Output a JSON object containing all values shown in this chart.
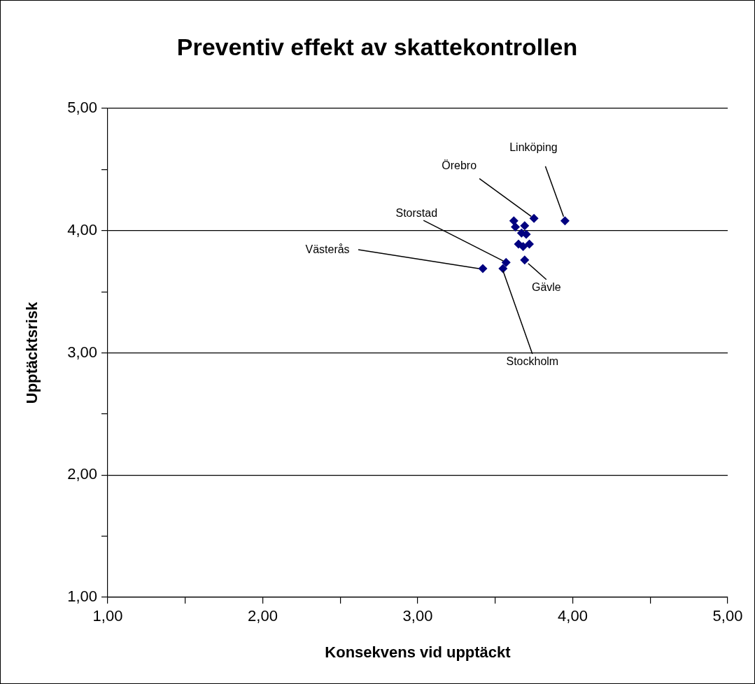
{
  "chart_data": {
    "type": "scatter",
    "title": "Preventiv effekt av skattekontrollen",
    "xlabel": "Konsekvens vid upptäckt",
    "ylabel": "Upptäcktsrisk",
    "series": [
      {
        "color": "#000080",
        "x": [
          3.75,
          3.95,
          3.62,
          3.63,
          3.69,
          3.67,
          3.7,
          3.65,
          3.68,
          3.72,
          3.69,
          3.57,
          3.55,
          3.42
        ],
        "values": [
          4.1,
          4.08,
          4.08,
          4.03,
          4.04,
          3.98,
          3.97,
          3.89,
          3.87,
          3.89,
          3.76,
          3.74,
          3.69,
          3.69
        ]
      }
    ],
    "marker": "diamond",
    "grid": "y",
    "legend": false,
    "xlim": [
      1,
      5
    ],
    "ylim": [
      1,
      5
    ],
    "xticks": [
      {
        "value": 1,
        "label": "1,00"
      },
      {
        "value": 1.5,
        "label": null
      },
      {
        "value": 2,
        "label": "2,00"
      },
      {
        "value": 2.5,
        "label": null
      },
      {
        "value": 3,
        "label": "3,00"
      },
      {
        "value": 3.5,
        "label": null
      },
      {
        "value": 4,
        "label": "4,00"
      },
      {
        "value": 4.5,
        "label": null
      },
      {
        "value": 5,
        "label": "5,00"
      }
    ],
    "yticks": [
      {
        "value": 1,
        "label": "1,00"
      },
      {
        "value": 1.5,
        "label": null
      },
      {
        "value": 2,
        "label": "2,00"
      },
      {
        "value": 2.5,
        "label": null
      },
      {
        "value": 3,
        "label": "3,00"
      },
      {
        "value": 3.5,
        "label": null
      },
      {
        "value": 4,
        "label": "4,00"
      },
      {
        "value": 4.5,
        "label": null
      },
      {
        "value": 5,
        "label": "5,00"
      }
    ],
    "annotations": [
      {
        "text": "Linköping",
        "x": 3.95,
        "y": 4.08
      },
      {
        "text": "Örebro",
        "x": 3.75,
        "y": 4.1
      },
      {
        "text": "Storstad",
        "x": 3.57,
        "y": 3.74
      },
      {
        "text": "Västerås",
        "x": 3.42,
        "y": 3.69
      },
      {
        "text": "Gävle",
        "x": 3.69,
        "y": 3.76
      },
      {
        "text": "Stockholm",
        "x": 3.55,
        "y": 3.69
      }
    ]
  }
}
